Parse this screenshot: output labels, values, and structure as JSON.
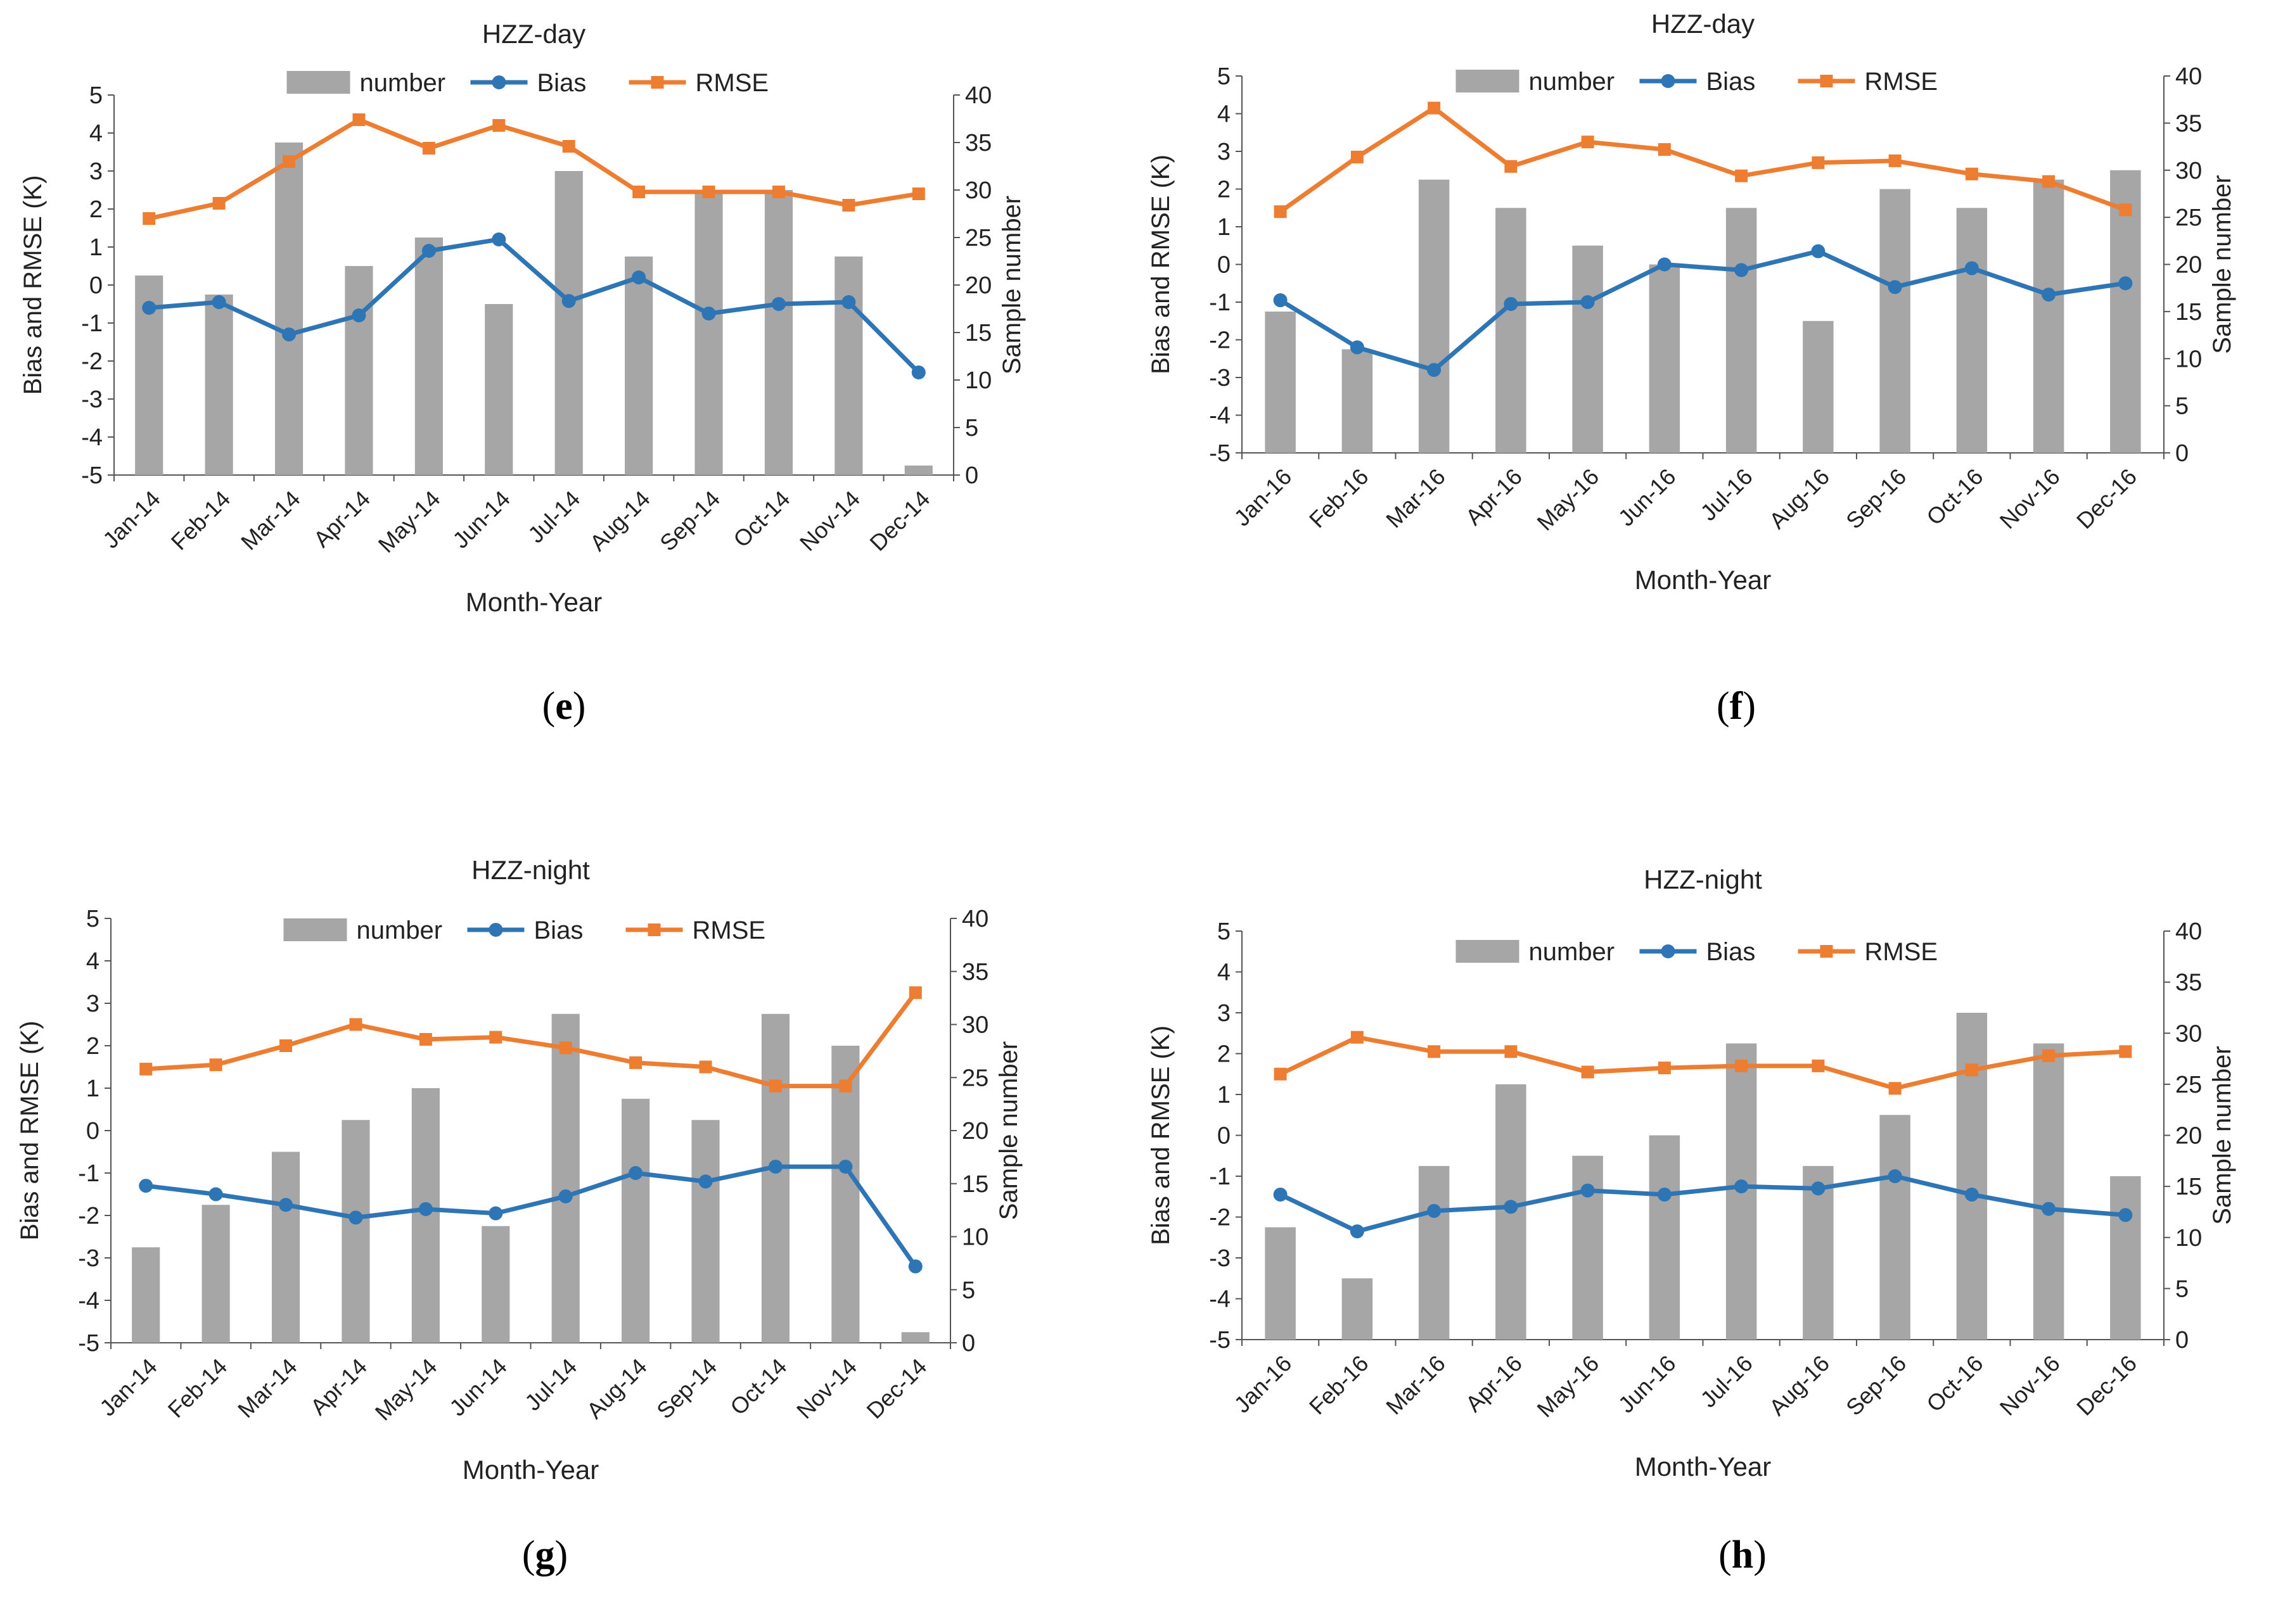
{
  "figure": {
    "captions": [
      "e",
      "f",
      "g",
      "h"
    ]
  },
  "chart_data": [
    {
      "id": "e",
      "type": "bar+line",
      "title": "HZZ-day",
      "xlabel": "Month-Year",
      "ylabel_left": "Bias and RMSE (K)",
      "ylabel_right": "Sample number",
      "ylim_left": [
        -5,
        5
      ],
      "ylim_right": [
        0,
        40
      ],
      "left_ticks": [
        "5",
        "4",
        "3",
        "2",
        "1",
        "0",
        "-1",
        "-2",
        "-3",
        "-4",
        "-5"
      ],
      "right_ticks": [
        "40",
        "35",
        "30",
        "25",
        "20",
        "15",
        "10",
        "5",
        "0"
      ],
      "legend": [
        "number",
        "Bias",
        "RMSE"
      ],
      "categories": [
        "Jan-14",
        "Feb-14",
        "Mar-14",
        "Apr-14",
        "May-14",
        "Jun-14",
        "Jul-14",
        "Aug-14",
        "Sep-14",
        "Oct-14",
        "Nov-14",
        "Dec-14"
      ],
      "series": [
        {
          "name": "number",
          "kind": "bar",
          "axis": "right",
          "color": "#a6a6a6",
          "values": [
            21,
            19,
            35,
            22,
            25,
            18,
            32,
            23,
            30,
            30,
            23,
            1
          ]
        },
        {
          "name": "Bias",
          "kind": "line",
          "axis": "left",
          "color": "#2e75b6",
          "values": [
            -0.6,
            -0.45,
            -1.3,
            -0.8,
            0.9,
            1.2,
            -0.42,
            0.2,
            -0.75,
            -0.5,
            -0.45,
            -2.3
          ]
        },
        {
          "name": "RMSE",
          "kind": "line",
          "axis": "left",
          "color": "#ed7d31",
          "values": [
            1.75,
            2.15,
            3.25,
            4.35,
            3.6,
            4.2,
            3.65,
            2.45,
            2.45,
            2.45,
            2.1,
            2.4
          ]
        }
      ]
    },
    {
      "id": "f",
      "type": "bar+line",
      "title": "HZZ-day",
      "xlabel": "Month-Year",
      "ylabel_left": "Bias and RMSE (K)",
      "ylabel_right": "Sample number",
      "ylim_left": [
        -5,
        5
      ],
      "ylim_right": [
        0,
        40
      ],
      "left_ticks": [
        "5",
        "4",
        "3",
        "2",
        "1",
        "0",
        "-1",
        "-2",
        "-3",
        "-4",
        "-5"
      ],
      "right_ticks": [
        "40",
        "35",
        "30",
        "25",
        "20",
        "15",
        "10",
        "5",
        "0"
      ],
      "legend": [
        "number",
        "Bias",
        "RMSE"
      ],
      "categories": [
        "Jan-16",
        "Feb-16",
        "Mar-16",
        "Apr-16",
        "May-16",
        "Jun-16",
        "Jul-16",
        "Aug-16",
        "Sep-16",
        "Oct-16",
        "Nov-16",
        "Dec-16"
      ],
      "series": [
        {
          "name": "number",
          "kind": "bar",
          "axis": "right",
          "color": "#a6a6a6",
          "values": [
            15,
            11,
            29,
            26,
            22,
            20,
            26,
            14,
            28,
            26,
            29,
            30
          ]
        },
        {
          "name": "Bias",
          "kind": "line",
          "axis": "left",
          "color": "#2e75b6",
          "values": [
            -0.95,
            -2.2,
            -2.8,
            -1.05,
            -1.0,
            0.0,
            -0.15,
            0.35,
            -0.6,
            -0.1,
            -0.8,
            -0.5
          ]
        },
        {
          "name": "RMSE",
          "kind": "line",
          "axis": "left",
          "color": "#ed7d31",
          "values": [
            1.4,
            2.85,
            4.15,
            2.6,
            3.25,
            3.05,
            2.35,
            2.7,
            2.75,
            2.4,
            2.2,
            1.45
          ]
        }
      ]
    },
    {
      "id": "g",
      "type": "bar+line",
      "title": "HZZ-night",
      "xlabel": "Month-Year",
      "ylabel_left": "Bias and RMSE (K)",
      "ylabel_right": "Sample number",
      "ylim_left": [
        -5,
        5
      ],
      "ylim_right": [
        0,
        40
      ],
      "left_ticks": [
        "5",
        "4",
        "3",
        "2",
        "1",
        "0",
        "-1",
        "-2",
        "-3",
        "-4",
        "-5"
      ],
      "right_ticks": [
        "40",
        "35",
        "30",
        "25",
        "20",
        "15",
        "10",
        "5",
        "0"
      ],
      "legend": [
        "number",
        "Bias",
        "RMSE"
      ],
      "categories": [
        "Jan-14",
        "Feb-14",
        "Mar-14",
        "Apr-14",
        "May-14",
        "Jun-14",
        "Jul-14",
        "Aug-14",
        "Sep-14",
        "Oct-14",
        "Nov-14",
        "Dec-14"
      ],
      "series": [
        {
          "name": "number",
          "kind": "bar",
          "axis": "right",
          "color": "#a6a6a6",
          "values": [
            9,
            13,
            18,
            21,
            24,
            11,
            31,
            23,
            21,
            31,
            28,
            1
          ]
        },
        {
          "name": "Bias",
          "kind": "line",
          "axis": "left",
          "color": "#2e75b6",
          "values": [
            -1.3,
            -1.5,
            -1.75,
            -2.05,
            -1.85,
            -1.95,
            -1.55,
            -1.0,
            -1.2,
            -0.85,
            -0.85,
            -3.2
          ]
        },
        {
          "name": "RMSE",
          "kind": "line",
          "axis": "left",
          "color": "#ed7d31",
          "values": [
            1.45,
            1.55,
            2.0,
            2.5,
            2.15,
            2.2,
            1.95,
            1.6,
            1.5,
            1.05,
            1.05,
            3.25
          ]
        }
      ]
    },
    {
      "id": "h",
      "type": "bar+line",
      "title": "HZZ-night",
      "xlabel": "Month-Year",
      "ylabel_left": "Bias and RMSE (K)",
      "ylabel_right": "Sample number",
      "ylim_left": [
        -5,
        5
      ],
      "ylim_right": [
        0,
        40
      ],
      "left_ticks": [
        "5",
        "4",
        "3",
        "2",
        "1",
        "0",
        "-1",
        "-2",
        "-3",
        "-4",
        "-5"
      ],
      "right_ticks": [
        "40",
        "35",
        "30",
        "25",
        "20",
        "15",
        "10",
        "5",
        "0"
      ],
      "legend": [
        "number",
        "Bias",
        "RMSE"
      ],
      "categories": [
        "Jan-16",
        "Feb-16",
        "Mar-16",
        "Apr-16",
        "May-16",
        "Jun-16",
        "Jul-16",
        "Aug-16",
        "Sep-16",
        "Oct-16",
        "Nov-16",
        "Dec-16"
      ],
      "series": [
        {
          "name": "number",
          "kind": "bar",
          "axis": "right",
          "color": "#a6a6a6",
          "values": [
            11,
            6,
            17,
            25,
            18,
            20,
            29,
            17,
            22,
            32,
            29,
            16
          ]
        },
        {
          "name": "Bias",
          "kind": "line",
          "axis": "left",
          "color": "#2e75b6",
          "values": [
            -1.45,
            -2.35,
            -1.85,
            -1.75,
            -1.35,
            -1.45,
            -1.25,
            -1.3,
            -1.0,
            -1.45,
            -1.8,
            -1.95
          ]
        },
        {
          "name": "RMSE",
          "kind": "line",
          "axis": "left",
          "color": "#ed7d31",
          "values": [
            1.5,
            2.4,
            2.05,
            2.05,
            1.55,
            1.65,
            1.7,
            1.7,
            1.15,
            1.6,
            1.95,
            2.05
          ]
        }
      ]
    }
  ]
}
